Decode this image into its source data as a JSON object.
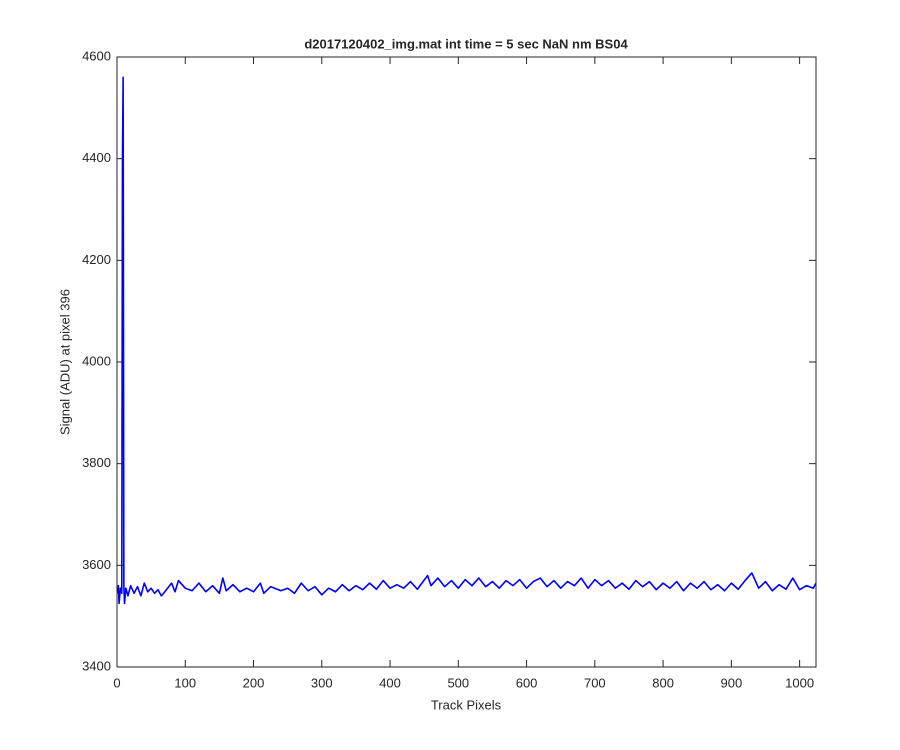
{
  "chart_data": {
    "type": "line",
    "title": "d2017120402_img.mat int time = 5 sec  NaN nm BS04",
    "x_label": "Track Pixels",
    "y_label": "Signal (ADU) at pixel 396",
    "color": "#0000ff",
    "xlim": [
      0,
      1024
    ],
    "xticks": [
      0,
      100,
      200,
      300,
      400,
      500,
      600,
      700,
      800,
      900,
      1000
    ],
    "ylim": [
      3400,
      4600
    ],
    "yticks": [
      3400,
      3600,
      3800,
      4000,
      4200,
      4400,
      4600
    ],
    "grid": false,
    "x": [
      1,
      2,
      3,
      5,
      7,
      8,
      9,
      10,
      11,
      13,
      16,
      20,
      25,
      30,
      35,
      40,
      45,
      50,
      55,
      60,
      65,
      70,
      80,
      85,
      90,
      100,
      110,
      120,
      130,
      140,
      150,
      155,
      160,
      170,
      180,
      190,
      200,
      210,
      215,
      225,
      240,
      250,
      260,
      270,
      280,
      290,
      300,
      310,
      320,
      330,
      340,
      350,
      360,
      370,
      380,
      390,
      400,
      410,
      420,
      430,
      440,
      455,
      460,
      470,
      480,
      490,
      500,
      510,
      520,
      530,
      540,
      550,
      560,
      570,
      580,
      590,
      600,
      610,
      620,
      630,
      640,
      650,
      660,
      670,
      680,
      690,
      700,
      710,
      720,
      730,
      740,
      750,
      760,
      770,
      780,
      790,
      800,
      810,
      820,
      830,
      840,
      850,
      860,
      870,
      880,
      890,
      900,
      910,
      920,
      930,
      940,
      950,
      960,
      970,
      980,
      990,
      1000,
      1010,
      1020,
      1024
    ],
    "values": [
      3545,
      3560,
      3525,
      3555,
      3545,
      4400,
      4560,
      3560,
      3525,
      3555,
      3540,
      3560,
      3545,
      3558,
      3540,
      3565,
      3548,
      3555,
      3545,
      3552,
      3540,
      3548,
      3565,
      3548,
      3570,
      3555,
      3550,
      3565,
      3548,
      3560,
      3545,
      3575,
      3550,
      3562,
      3548,
      3555,
      3548,
      3565,
      3545,
      3558,
      3550,
      3555,
      3545,
      3565,
      3550,
      3558,
      3542,
      3555,
      3548,
      3562,
      3550,
      3560,
      3552,
      3565,
      3553,
      3570,
      3555,
      3562,
      3555,
      3568,
      3553,
      3580,
      3560,
      3575,
      3558,
      3570,
      3555,
      3572,
      3560,
      3575,
      3558,
      3568,
      3555,
      3570,
      3560,
      3572,
      3555,
      3568,
      3575,
      3558,
      3570,
      3555,
      3568,
      3560,
      3575,
      3555,
      3572,
      3560,
      3570,
      3555,
      3565,
      3553,
      3570,
      3558,
      3568,
      3552,
      3565,
      3555,
      3568,
      3550,
      3565,
      3555,
      3568,
      3552,
      3562,
      3550,
      3565,
      3553,
      3570,
      3585,
      3555,
      3568,
      3550,
      3562,
      3553,
      3575,
      3552,
      3560,
      3555,
      3565
    ]
  }
}
